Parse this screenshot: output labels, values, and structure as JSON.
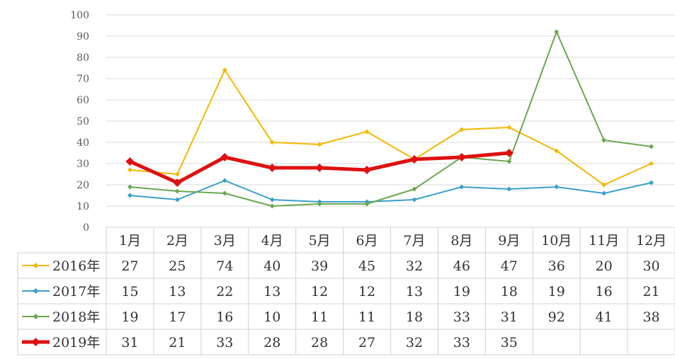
{
  "chart_data": {
    "type": "line",
    "title": "",
    "xlabel": "",
    "ylabel": "",
    "ylim": [
      0,
      100
    ],
    "yticks": [
      0,
      10,
      20,
      30,
      40,
      50,
      60,
      70,
      80,
      90,
      100
    ],
    "grid": true,
    "legend": "table-left",
    "categories": [
      "1月",
      "2月",
      "3月",
      "4月",
      "5月",
      "6月",
      "7月",
      "8月",
      "9月",
      "10月",
      "11月",
      "12月"
    ],
    "series": [
      {
        "name": "2016年",
        "color": "#f5b800",
        "bold": false,
        "values": [
          27,
          25,
          74,
          40,
          39,
          45,
          32,
          46,
          47,
          36,
          20,
          30
        ]
      },
      {
        "name": "2017年",
        "color": "#3aa0cc",
        "bold": false,
        "values": [
          15,
          13,
          22,
          13,
          12,
          12,
          13,
          19,
          18,
          19,
          16,
          21
        ]
      },
      {
        "name": "2018年",
        "color": "#6aa84f",
        "bold": false,
        "values": [
          19,
          17,
          16,
          10,
          11,
          11,
          18,
          33,
          31,
          92,
          41,
          38
        ]
      },
      {
        "name": "2019年",
        "color": "#e01010",
        "bold": true,
        "values": [
          31,
          21,
          33,
          28,
          28,
          27,
          32,
          33,
          35,
          null,
          null,
          null
        ]
      }
    ]
  }
}
